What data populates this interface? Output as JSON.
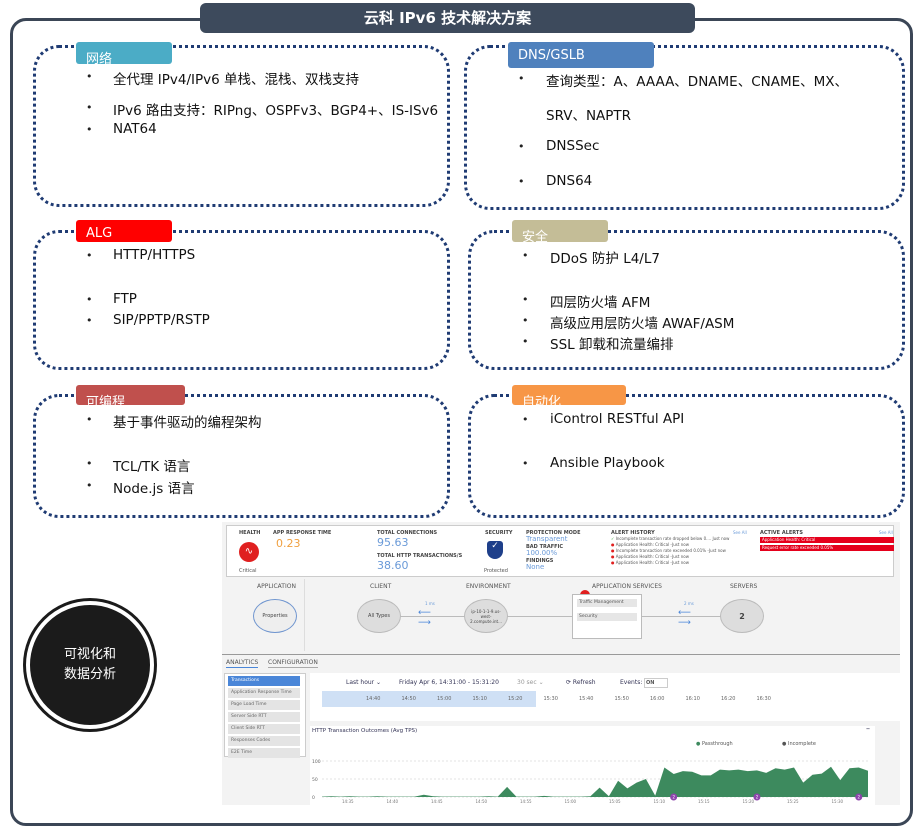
{
  "title": "云科 IPv6 技术解决方案",
  "sections": [
    {
      "label": "网络",
      "color": "#4bacc6",
      "items": [
        "全代理 IPv4/IPv6 单栈、混栈、双栈支持",
        "IPv6 路由支持：RIPng、OSPFv3、BGP4+、IS-ISv6",
        "NAT64"
      ]
    },
    {
      "label": "DNS/GSLB",
      "color": "#4f81bd",
      "items": [
        "查询类型：A、AAAA、DNAME、CNAME、MX、",
        "SRV、NAPTR",
        "DNSSec",
        "DNS64"
      ]
    },
    {
      "label": "ALG",
      "color": "#ff0000",
      "items": [
        "HTTP/HTTPS",
        "FTP",
        "SIP/PPTP/RSTP"
      ]
    },
    {
      "label": "安全",
      "color": "#c4bd97",
      "items": [
        "DDoS 防护 L4/L7",
        "四层防火墙 AFM",
        "高级应用层防火墙 AWAF/ASM",
        "SSL 卸载和流量编排"
      ]
    },
    {
      "label": "可编程",
      "color": "#c0504d",
      "items": [
        "基于事件驱动的编程架构",
        "TCL/TK 语言",
        "Node.js 语言"
      ]
    },
    {
      "label": "自动化",
      "color": "#f79646",
      "items": [
        "iControl RESTful API",
        "Ansible Playbook"
      ]
    }
  ],
  "bullet": "•",
  "circle_text": "可视化和数据分析",
  "dashboard": {
    "health": {
      "label": "HEALTH",
      "status": "Critical"
    },
    "app_response": {
      "label": "APP RESPONSE TIME",
      "value": "0.23"
    },
    "connections": {
      "label": "TOTAL CONNECTIONS",
      "value": "95.63",
      "http_label": "TOTAL HTTP TRANSACTIONS/s",
      "http_value": "38.60"
    },
    "security": {
      "label": "SECURITY",
      "status": "Protected"
    },
    "protection": {
      "mode_label": "PROTECTION MODE",
      "mode": "Transparent",
      "bad_label": "BAD TRAFFIC",
      "bad": "100.00%",
      "findings_label": "FINDINGS",
      "findings": "None"
    },
    "alert_history": {
      "label": "ALERT HISTORY",
      "see_all": "See All",
      "items": [
        "Incomplete transaction rate dropped below 0.... Just now",
        "Application Health: Critical -Just now",
        "Incomplete transaction rate exceeded 0.01% -Just now",
        "Application Health: Critical -Just now",
        "Application Health: Critical -Just now"
      ]
    },
    "active_alerts": {
      "label": "ACTIVE ALERTS",
      "see_all": "See All",
      "items": [
        "Application Health: Critical",
        "Request error rate exceeded 0.05%"
      ]
    },
    "topology": {
      "application": "APPLICATION",
      "properties": "Properties",
      "client": "CLIENT",
      "all_types": "All Types",
      "environment": "ENVIRONMENT",
      "env_node": "ip-10-1-1-9.us-west-2.compute.int...",
      "services": "APPLICATION SERVICES",
      "traffic": "Traffic Management",
      "security": "Security",
      "servers": "SERVERS",
      "server_count": "2",
      "latency1": "1 ms",
      "latency2": "2 ms"
    },
    "tabs": [
      "ANALYTICS",
      "CONFIGURATION"
    ],
    "menu": [
      "Transactions",
      "Application Response Time",
      "Page Load Time",
      "Server Side RTT",
      "Client Side RTT",
      "Responses Codes",
      "E2E Time"
    ],
    "toolbar": {
      "range": "Last hour ⌄",
      "dates": "Friday Apr 6, 14:31:00 - 15:31:20",
      "interval": "30 sec ⌄",
      "refresh": "⟳ Refresh",
      "events": "Events:",
      "events_state": "ON"
    },
    "timeline": [
      "14:40",
      "14:50",
      "15:00",
      "15:10",
      "15:20",
      "15:30",
      "15:40",
      "15:50",
      "16:00",
      "16:10",
      "16:20",
      "16:30"
    ],
    "chart_data": {
      "type": "area",
      "title": "HTTP Transaction Outcomes (Avg TPS)",
      "legend": [
        "Passthrough",
        "Incomplete"
      ],
      "colors": {
        "Passthrough": "#3d8a5e",
        "Incomplete": "#111111"
      },
      "ylim": [
        0,
        100
      ],
      "yticks": [
        "100",
        "50",
        "0"
      ],
      "xticks": [
        "14:35",
        "14:40",
        "14:45",
        "14:50",
        "14:55",
        "15:00",
        "15:05",
        "15:10",
        "15:15",
        "15:20",
        "15:25",
        "15:30"
      ],
      "series": [
        {
          "name": "Passthrough",
          "values": [
            1,
            2,
            1,
            2,
            1,
            1,
            2,
            1,
            1,
            1,
            1,
            6,
            2,
            1,
            1,
            1,
            1,
            1,
            2,
            1,
            28,
            1,
            1,
            1,
            3,
            1,
            1,
            1,
            1,
            2,
            26,
            2,
            45,
            24,
            40,
            50,
            4,
            82,
            64,
            72,
            70,
            60,
            60,
            76,
            74,
            76,
            72,
            74,
            67,
            80,
            76,
            82,
            40,
            62,
            65,
            84,
            47,
            80,
            82,
            73
          ]
        }
      ],
      "markers": [
        "2",
        "2",
        "2"
      ]
    }
  }
}
